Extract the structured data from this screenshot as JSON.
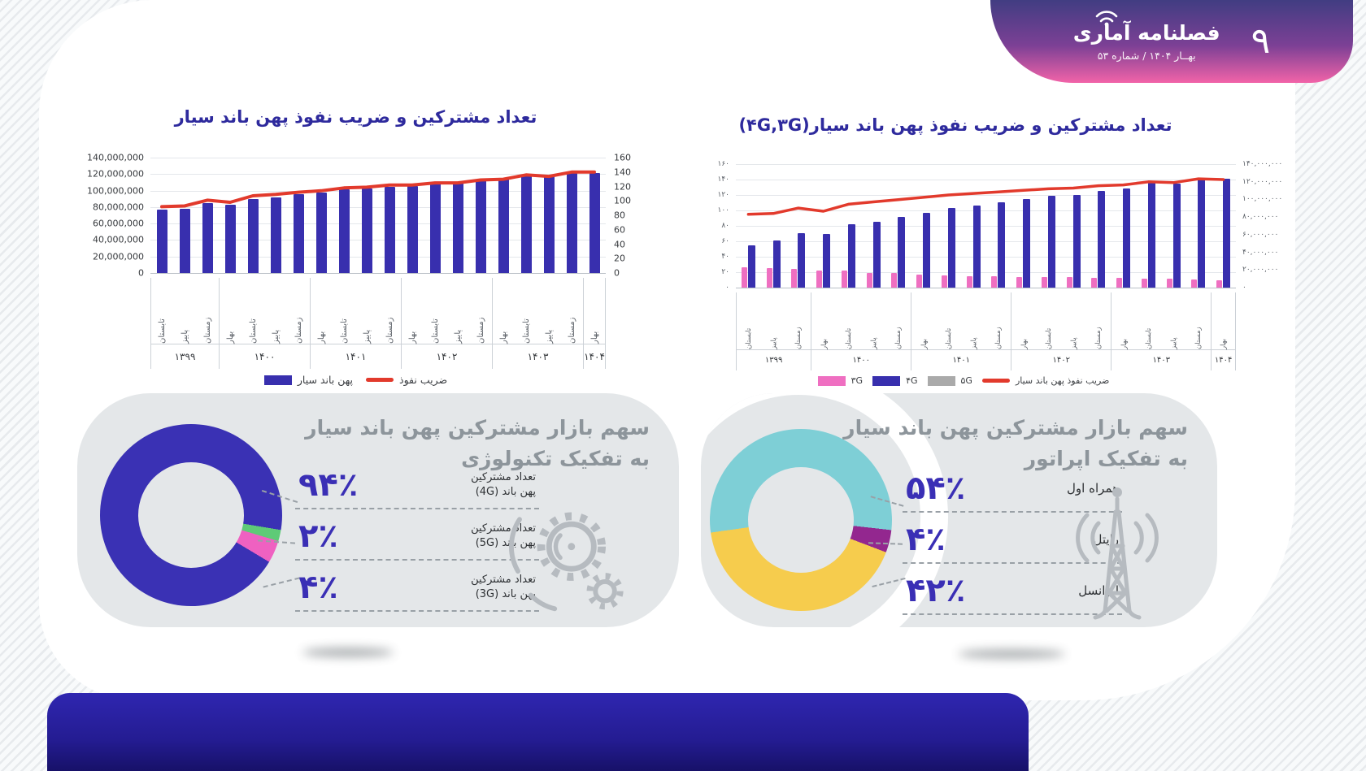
{
  "header": {
    "page_number": "۹",
    "logo_title": "فصلنامه آماری",
    "issue_info": "بهــار ۱۴۰۴ / شماره ۵۳"
  },
  "charts": {
    "left": {
      "title": "تعداد مشترکین و ضریب نفوذ پهن باند سیار",
      "legend": [
        {
          "type": "bar",
          "color": "#382fae",
          "label": "پهن باند سیار"
        },
        {
          "type": "line",
          "color": "#e23a2c",
          "label": "ضریب نفوذ"
        }
      ]
    },
    "right": {
      "title_main": "تعداد مشترکین و ضریب نفوذ پهن باند سیار",
      "title_suffix": "(۴G,۳G)",
      "legend": [
        {
          "type": "bar",
          "color": "#ef6fc1",
          "label": "۳G"
        },
        {
          "type": "bar",
          "color": "#382fae",
          "label": "۴G"
        },
        {
          "type": "bar",
          "color": "#aaaaaa",
          "label": "۵G"
        },
        {
          "type": "line",
          "color": "#e23a2c",
          "label": "ضریب نفوذ پهن باند سیار"
        }
      ]
    }
  },
  "panels": {
    "technology": {
      "title_line1": "سهم بازار مشترکین پهن باند سیار",
      "title_line2": "به تفکیک تکنولوژی",
      "stats": [
        {
          "value": "۹۴٪",
          "label_line1": "تعداد مشترکین",
          "label_line2": "پهن باند (4G)"
        },
        {
          "value": "۲٪",
          "label_line1": "تعداد مشترکین",
          "label_line2": "پهن باند (5G)"
        },
        {
          "value": "۴٪",
          "label_line1": "تعداد مشترکین",
          "label_line2": "پهن باند (3G)"
        }
      ],
      "icon": "gears-icon"
    },
    "operator": {
      "title_line1": "سهم بازار مشترکین پهن باند سیار",
      "title_line2": "به تفکیک اپراتور",
      "stats": [
        {
          "value": "۵۴٪",
          "label": "همراه اول"
        },
        {
          "value": "۴٪",
          "label": "رایتل"
        },
        {
          "value": "۴۲٪",
          "label": "ایرانسل"
        }
      ],
      "icon": "antenna-tower-icon"
    }
  },
  "chart_data": [
    {
      "id": "mobile-broadband-subscribers-and-penetration",
      "type": "bar",
      "title": "تعداد مشترکین و ضریب نفوذ پهن باند سیار",
      "categories": [
        "تابستان",
        "پاییز",
        "زمستان",
        "بهار",
        "تابستان",
        "پاییز",
        "زمستان",
        "بهار",
        "تابستان",
        "پاییز",
        "زمستان",
        "بهار",
        "تابستان",
        "پاییز",
        "زمستان",
        "بهار",
        "تابستان",
        "پاییز",
        "زمستان",
        "بهار"
      ],
      "year_groups": [
        {
          "label": "۱۳۹۹",
          "count": 3
        },
        {
          "label": "۱۴۰۰",
          "count": 4
        },
        {
          "label": "۱۴۰۱",
          "count": 4
        },
        {
          "label": "۱۴۰۲",
          "count": 4
        },
        {
          "label": "۱۴۰۳",
          "count": 4
        },
        {
          "label": "۱۴۰۴",
          "count": 1
        }
      ],
      "series": [
        {
          "name": "پهن باند سیار",
          "type": "bar",
          "axis": "left",
          "color": "#382fae",
          "values": [
            77000000,
            78000000,
            85000000,
            83000000,
            90000000,
            92000000,
            96000000,
            98000000,
            102000000,
            103000000,
            105000000,
            106000000,
            109000000,
            109000000,
            113000000,
            114000000,
            119000000,
            117000000,
            121000000,
            121000000
          ]
        },
        {
          "name": "ضریب نفوذ",
          "type": "line",
          "axis": "right",
          "color": "#e23a2c",
          "values": [
            92,
            93,
            101,
            98,
            107,
            109,
            112,
            114,
            118,
            119,
            122,
            122,
            125,
            125,
            129,
            130,
            136,
            134,
            140,
            140
          ]
        }
      ],
      "left_axis": {
        "ticks": [
          "140,000,000",
          "120,000,000",
          "100,000,000",
          "80,000,000",
          "60,000,000",
          "40,000,000",
          "20,000,000",
          "0"
        ],
        "max": 140000000
      },
      "right_axis": {
        "ticks": [
          "160",
          "140",
          "120",
          "100",
          "80",
          "60",
          "40",
          "20",
          "0"
        ],
        "max": 160
      },
      "grid": true,
      "legend_position": "bottom"
    },
    {
      "id": "mobile-broadband-subscribers-by-technology",
      "type": "bar",
      "title": "تعداد مشترکین و ضریب نفوذ پهن باند سیار(۴G,۳G)",
      "categories": [
        "تابستان",
        "پاییز",
        "زمستان",
        "بهار",
        "تابستان",
        "پاییز",
        "زمستان",
        "بهار",
        "تابستان",
        "پاییز",
        "زمستان",
        "بهار",
        "تابستان",
        "پاییز",
        "زمستان",
        "بهار",
        "تابستان",
        "پاییز",
        "زمستان",
        "بهار"
      ],
      "year_groups": [
        {
          "label": "۱۳۹۹",
          "count": 3
        },
        {
          "label": "۱۴۰۰",
          "count": 4
        },
        {
          "label": "۱۴۰۱",
          "count": 4
        },
        {
          "label": "۱۴۰۲",
          "count": 4
        },
        {
          "label": "۱۴۰۳",
          "count": 4
        },
        {
          "label": "۱۴۰۴",
          "count": 1
        }
      ],
      "series": [
        {
          "name": "۳G",
          "type": "bar",
          "axis": "right",
          "color": "#ef6fc1",
          "values": [
            23000000,
            22000000,
            21000000,
            19000000,
            19000000,
            17000000,
            17000000,
            15000000,
            14000000,
            13000000,
            13000000,
            12000000,
            12000000,
            12000000,
            11000000,
            11000000,
            10000000,
            10000000,
            9000000,
            8000000
          ]
        },
        {
          "name": "۴G",
          "type": "bar",
          "axis": "right",
          "color": "#382fae",
          "values": [
            48000000,
            53000000,
            62000000,
            61000000,
            72000000,
            75000000,
            80000000,
            85000000,
            90000000,
            93000000,
            97000000,
            100000000,
            104000000,
            105000000,
            110000000,
            112000000,
            119000000,
            118000000,
            124000000,
            123000000
          ]
        },
        {
          "name": "۵G",
          "type": "bar",
          "axis": "right",
          "color": "#aaaaaa",
          "values": [
            0,
            0,
            0,
            0,
            0,
            0,
            0,
            0,
            0,
            0,
            0,
            0,
            0,
            0,
            0,
            0,
            0,
            0,
            0,
            0
          ]
        },
        {
          "name": "ضریب نفوذ پهن باند سیار",
          "type": "line",
          "axis": "left",
          "color": "#e23a2c",
          "values": [
            95,
            96,
            103,
            99,
            108,
            111,
            114,
            117,
            120,
            122,
            124,
            126,
            128,
            129,
            132,
            133,
            137,
            136,
            141,
            140
          ]
        }
      ],
      "left_axis": {
        "ticks": [
          "۱۶۰",
          "۱۴۰",
          "۱۲۰",
          "۱۰۰",
          "۸۰",
          "۶۰",
          "۴۰",
          "۲۰",
          "۰"
        ],
        "max": 160
      },
      "right_axis": {
        "ticks": [
          "۱۴۰,۰۰۰,۰۰۰",
          "۱۲۰,۰۰۰,۰۰۰",
          "۱۰۰,۰۰۰,۰۰۰",
          "۸۰,۰۰۰,۰۰۰",
          "۶۰,۰۰۰,۰۰۰",
          "۴۰,۰۰۰,۰۰۰",
          "۲۰,۰۰۰,۰۰۰",
          "۰"
        ],
        "max": 140000000
      },
      "grid": true,
      "legend_position": "bottom"
    },
    {
      "id": "market-share-by-technology",
      "type": "pie",
      "title": "سهم بازار مشترکین پهن باند سیار به تفکیک تکنولوژی",
      "start_angle": 121,
      "slices": [
        {
          "label": "تعداد مشترکین پهن باند (4G)",
          "value": 94,
          "display": "۹۴٪",
          "color": "#3a31b4"
        },
        {
          "label": "تعداد مشترکین پهن باند (5G)",
          "value": 2,
          "display": "۲٪",
          "color": "#5ecb77"
        },
        {
          "label": "تعداد مشترکین پهن باند (3G)",
          "value": 4,
          "display": "۴٪",
          "color": "#ef61c1"
        }
      ]
    },
    {
      "id": "market-share-by-operator",
      "type": "pie",
      "title": "سهم بازار مشترکین پهن باند سیار به تفکیک اپراتور",
      "start_angle": 262,
      "slices": [
        {
          "label": "همراه اول",
          "value": 54,
          "display": "۵۴٪",
          "color": "#7ecfd6"
        },
        {
          "label": "رایتل",
          "value": 4,
          "display": "۴٪",
          "color": "#93278f"
        },
        {
          "label": "ایرانسل",
          "value": 42,
          "display": "۴۲٪",
          "color": "#f6cc4d"
        }
      ]
    }
  ]
}
